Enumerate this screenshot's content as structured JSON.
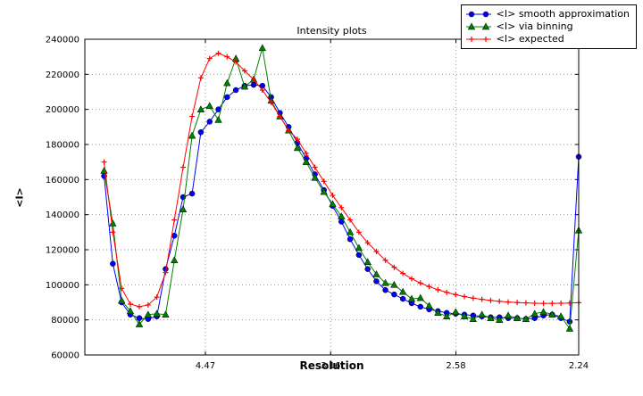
{
  "chart_data": {
    "type": "line",
    "title": "Intensity plots",
    "xlabel": "Resolution",
    "ylabel": "<I>",
    "grid": true,
    "legend_position": "upper right",
    "axis_color": "#000000",
    "grid_color": "#999999",
    "xlim": [
      0.0018,
      0.1993
    ],
    "ylim": [
      60000,
      240000
    ],
    "yticks": [
      60000,
      80000,
      100000,
      120000,
      140000,
      160000,
      180000,
      200000,
      220000,
      240000
    ],
    "xticks": [
      {
        "value": 0.05,
        "label": "4.47"
      },
      {
        "value": 0.1001,
        "label": "3.16"
      },
      {
        "value": 0.1502,
        "label": "2.58"
      },
      {
        "value": 0.1993,
        "label": "2.24"
      }
    ],
    "x": [
      0.0095,
      0.013,
      0.0165,
      0.02,
      0.0236,
      0.0271,
      0.0306,
      0.0341,
      0.0376,
      0.0411,
      0.0447,
      0.0482,
      0.0517,
      0.0552,
      0.0587,
      0.0622,
      0.0657,
      0.0693,
      0.0728,
      0.0763,
      0.0798,
      0.0833,
      0.0868,
      0.0903,
      0.0938,
      0.0974,
      0.1009,
      0.1044,
      0.1079,
      0.1114,
      0.1149,
      0.1184,
      0.122,
      0.1255,
      0.129,
      0.1325,
      0.136,
      0.1395,
      0.143,
      0.1465,
      0.1501,
      0.1536,
      0.1571,
      0.1606,
      0.1641,
      0.1676,
      0.1711,
      0.1747,
      0.1782,
      0.1817,
      0.1852,
      0.1887,
      0.1922,
      0.1957,
      0.1993
    ],
    "series": [
      {
        "name": "<I> smooth approximation",
        "color": "#0000ff",
        "marker": "circle",
        "values": [
          162000,
          112000,
          90000,
          83000,
          81000,
          80500,
          82000,
          109000,
          128000,
          150000,
          152000,
          187000,
          193000,
          200000,
          207000,
          211000,
          213500,
          214000,
          213500,
          207000,
          198000,
          190000,
          181000,
          172000,
          163000,
          154000,
          145000,
          136000,
          126000,
          117000,
          109000,
          102000,
          97000,
          94500,
          92000,
          89500,
          87500,
          86000,
          85000,
          84000,
          83500,
          83000,
          82500,
          82000,
          81500,
          81500,
          81000,
          81000,
          80500,
          81000,
          82500,
          83000,
          81000,
          79000,
          173000
        ]
      },
      {
        "name": "<I> via binning",
        "color": "#008000",
        "marker": "triangle-up",
        "values": [
          165000,
          135000,
          91000,
          85000,
          77500,
          83000,
          83500,
          83000,
          114000,
          143000,
          185000,
          200000,
          202000,
          194000,
          215000,
          229000,
          213000,
          217000,
          235000,
          205000,
          196000,
          188000,
          178000,
          170000,
          161000,
          153000,
          146000,
          139000,
          130000,
          121000,
          113000,
          106000,
          101000,
          100000,
          96000,
          92000,
          92500,
          88000,
          84000,
          82000,
          84500,
          82000,
          80500,
          83000,
          81000,
          80000,
          82500,
          81000,
          80500,
          83500,
          84500,
          83000,
          82000,
          75000,
          131000
        ]
      },
      {
        "name": "<I> expected",
        "color": "#ff0000",
        "marker": "plus",
        "values": [
          170000,
          130000,
          98000,
          89000,
          87500,
          88500,
          93000,
          107000,
          137000,
          167000,
          196000,
          218000,
          229000,
          232000,
          230000,
          227000,
          222000,
          217000,
          211000,
          204000,
          196000,
          188000,
          183000,
          175000,
          167000,
          159000,
          151000,
          144000,
          137000,
          130000,
          124000,
          119000,
          114000,
          110000,
          106500,
          103500,
          101000,
          99000,
          97200,
          95700,
          94400,
          93300,
          92400,
          91700,
          91100,
          90600,
          90200,
          89900,
          89700,
          89500,
          89400,
          89400,
          89500,
          89600,
          89800
        ]
      }
    ]
  }
}
